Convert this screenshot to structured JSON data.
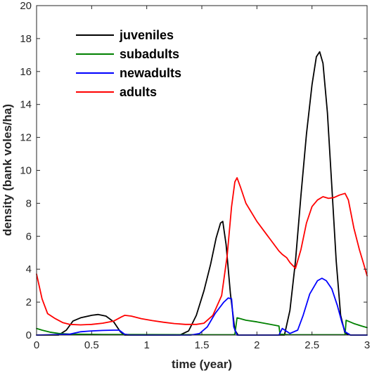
{
  "chart_data": {
    "type": "line",
    "xlabel": "time (year)",
    "ylabel": "density (bank voles/ha)",
    "xlim": [
      0,
      3
    ],
    "ylim": [
      0,
      20
    ],
    "xticks": [
      "0",
      "0.5",
      "1",
      "1.5",
      "2",
      "2.5",
      "3"
    ],
    "yticks": [
      "0",
      "2",
      "4",
      "6",
      "8",
      "10",
      "12",
      "14",
      "16",
      "18",
      "20"
    ],
    "grid": false,
    "legend_position": "top-left",
    "series": [
      {
        "name": "juveniles",
        "color": "#000000",
        "points": [
          [
            0,
            0
          ],
          [
            0.2,
            0
          ],
          [
            0.27,
            0.3
          ],
          [
            0.33,
            0.85
          ],
          [
            0.4,
            1.05
          ],
          [
            0.5,
            1.2
          ],
          [
            0.56,
            1.25
          ],
          [
            0.63,
            1.15
          ],
          [
            0.7,
            0.8
          ],
          [
            0.76,
            0.2
          ],
          [
            0.8,
            0
          ],
          [
            1.3,
            0
          ],
          [
            1.38,
            0.25
          ],
          [
            1.45,
            1.2
          ],
          [
            1.52,
            2.7
          ],
          [
            1.58,
            4.3
          ],
          [
            1.63,
            5.9
          ],
          [
            1.67,
            6.8
          ],
          [
            1.69,
            6.9
          ],
          [
            1.72,
            5.5
          ],
          [
            1.76,
            2.5
          ],
          [
            1.8,
            0.3
          ],
          [
            1.83,
            0
          ],
          [
            2.25,
            0
          ],
          [
            2.3,
            1.5
          ],
          [
            2.35,
            4.5
          ],
          [
            2.4,
            8.5
          ],
          [
            2.45,
            12.2
          ],
          [
            2.5,
            15.2
          ],
          [
            2.54,
            16.9
          ],
          [
            2.57,
            17.2
          ],
          [
            2.6,
            16.5
          ],
          [
            2.64,
            13.5
          ],
          [
            2.68,
            9
          ],
          [
            2.72,
            4.5
          ],
          [
            2.76,
            1.2
          ],
          [
            2.8,
            0.1
          ],
          [
            2.85,
            0
          ],
          [
            3,
            0
          ]
        ]
      },
      {
        "name": "subadults",
        "color": "#008000",
        "points": [
          [
            0,
            0.4
          ],
          [
            0.05,
            0.3
          ],
          [
            0.12,
            0.18
          ],
          [
            0.2,
            0.1
          ],
          [
            0.3,
            0.06
          ],
          [
            0.6,
            0.04
          ],
          [
            1,
            0.03
          ],
          [
            1.5,
            0.02
          ],
          [
            1.78,
            0.02
          ],
          [
            1.8,
            0.05
          ],
          [
            1.82,
            1.05
          ],
          [
            1.9,
            0.9
          ],
          [
            2.0,
            0.8
          ],
          [
            2.1,
            0.68
          ],
          [
            2.2,
            0.55
          ],
          [
            2.21,
            0.05
          ],
          [
            2.3,
            0.02
          ],
          [
            2.8,
            0.02
          ],
          [
            2.81,
            0.9
          ],
          [
            2.88,
            0.7
          ],
          [
            2.95,
            0.55
          ],
          [
            3,
            0.45
          ]
        ]
      },
      {
        "name": "newadults",
        "color": "#0000ff",
        "points": [
          [
            0,
            0
          ],
          [
            0.3,
            0.05
          ],
          [
            0.4,
            0.2
          ],
          [
            0.5,
            0.25
          ],
          [
            0.6,
            0.28
          ],
          [
            0.7,
            0.3
          ],
          [
            0.75,
            0.3
          ],
          [
            0.8,
            0.05
          ],
          [
            0.85,
            0
          ],
          [
            1.4,
            0
          ],
          [
            1.48,
            0.1
          ],
          [
            1.55,
            0.5
          ],
          [
            1.62,
            1.3
          ],
          [
            1.7,
            2.0
          ],
          [
            1.74,
            2.25
          ],
          [
            1.77,
            2.2
          ],
          [
            1.79,
            0.5
          ],
          [
            1.82,
            0
          ],
          [
            2.2,
            0
          ],
          [
            2.23,
            0.4
          ],
          [
            2.3,
            0.1
          ],
          [
            2.37,
            0.3
          ],
          [
            2.42,
            1.2
          ],
          [
            2.48,
            2.5
          ],
          [
            2.55,
            3.3
          ],
          [
            2.59,
            3.45
          ],
          [
            2.63,
            3.3
          ],
          [
            2.68,
            2.8
          ],
          [
            2.73,
            1.8
          ],
          [
            2.77,
            0.8
          ],
          [
            2.8,
            0.2
          ],
          [
            2.85,
            0
          ],
          [
            3,
            0
          ]
        ]
      },
      {
        "name": "adults",
        "color": "#ff0000",
        "points": [
          [
            0,
            3.7
          ],
          [
            0.05,
            2.2
          ],
          [
            0.1,
            1.3
          ],
          [
            0.17,
            1.0
          ],
          [
            0.24,
            0.75
          ],
          [
            0.3,
            0.65
          ],
          [
            0.4,
            0.62
          ],
          [
            0.5,
            0.65
          ],
          [
            0.6,
            0.72
          ],
          [
            0.7,
            0.85
          ],
          [
            0.77,
            1.1
          ],
          [
            0.8,
            1.2
          ],
          [
            0.86,
            1.15
          ],
          [
            0.95,
            1.0
          ],
          [
            1.05,
            0.88
          ],
          [
            1.15,
            0.78
          ],
          [
            1.25,
            0.7
          ],
          [
            1.35,
            0.65
          ],
          [
            1.45,
            0.65
          ],
          [
            1.52,
            0.72
          ],
          [
            1.6,
            1.2
          ],
          [
            1.68,
            2.4
          ],
          [
            1.73,
            4.8
          ],
          [
            1.77,
            7.8
          ],
          [
            1.8,
            9.3
          ],
          [
            1.82,
            9.55
          ],
          [
            1.85,
            9.0
          ],
          [
            1.9,
            8.0
          ],
          [
            2.0,
            6.9
          ],
          [
            2.1,
            6.0
          ],
          [
            2.2,
            5.1
          ],
          [
            2.23,
            4.9
          ],
          [
            2.27,
            4.7
          ],
          [
            2.3,
            4.4
          ],
          [
            2.35,
            4.05
          ],
          [
            2.4,
            5.2
          ],
          [
            2.45,
            6.8
          ],
          [
            2.5,
            7.8
          ],
          [
            2.55,
            8.2
          ],
          [
            2.6,
            8.4
          ],
          [
            2.65,
            8.3
          ],
          [
            2.7,
            8.35
          ],
          [
            2.75,
            8.5
          ],
          [
            2.8,
            8.6
          ],
          [
            2.83,
            8.2
          ],
          [
            2.88,
            6.5
          ],
          [
            2.93,
            5.2
          ],
          [
            2.97,
            4.3
          ],
          [
            3,
            3.6
          ]
        ]
      }
    ]
  }
}
